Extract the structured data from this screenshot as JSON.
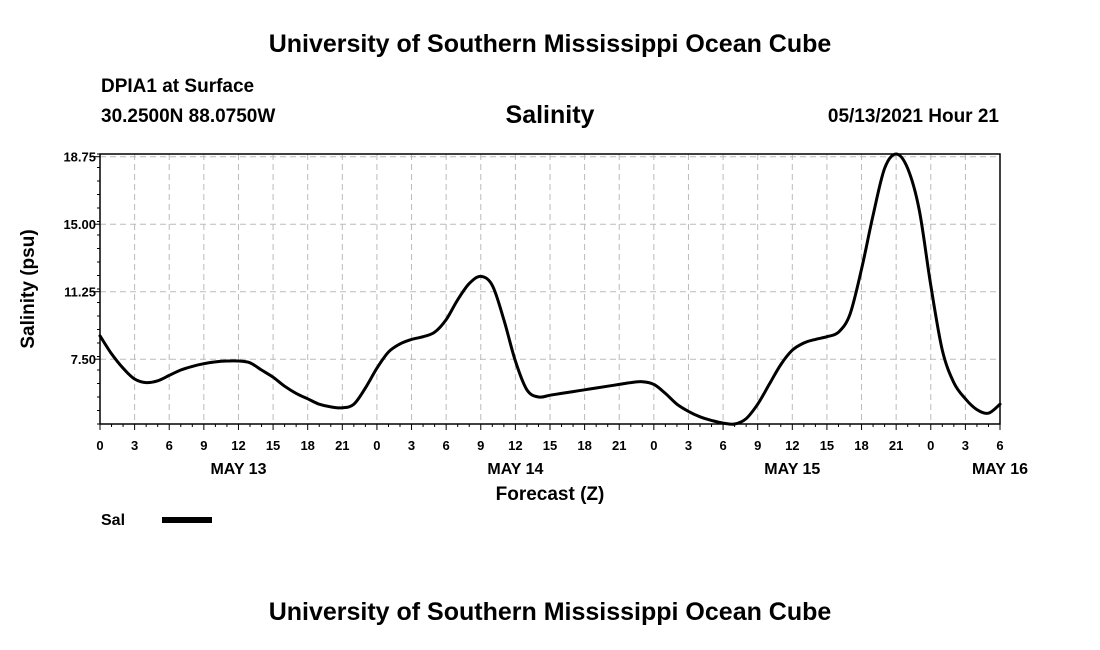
{
  "header": {
    "title": "University of Southern Mississippi Ocean Cube",
    "station": "DPIA1 at Surface",
    "coords": "30.2500N  88.0750W",
    "chart_title": "Salinity",
    "run_time": "05/13/2021 Hour 21",
    "footer_title": "University of Southern Mississippi Ocean Cube"
  },
  "colors": {
    "line": "#000000",
    "grid": "#bbbbbb",
    "background": "#ffffff"
  },
  "chart_data": {
    "type": "line",
    "title": "Salinity",
    "xlabel": "Forecast (Z)",
    "ylabel": "Salinity (psu)",
    "ylim": [
      3.9,
      18.9
    ],
    "yticks": [
      7.5,
      11.25,
      15.0,
      18.75
    ],
    "ytick_labels": [
      "7.50",
      "11.25",
      "15.00",
      "18.75"
    ],
    "xlim": [
      0,
      78
    ],
    "xticks": [
      0,
      3,
      6,
      9,
      12,
      15,
      18,
      21,
      24,
      27,
      30,
      33,
      36,
      39,
      42,
      45,
      48,
      51,
      54,
      57,
      60,
      63,
      66,
      69,
      72,
      75,
      78
    ],
    "xtick_labels": [
      "0",
      "3",
      "6",
      "9",
      "12",
      "15",
      "18",
      "21",
      "0",
      "3",
      "6",
      "9",
      "12",
      "15",
      "18",
      "21",
      "0",
      "3",
      "6",
      "9",
      "12",
      "15",
      "18",
      "21",
      "0",
      "3",
      "6"
    ],
    "x_unit": "hours since 00Z May 13",
    "day_labels": [
      {
        "x": 12,
        "label": "MAY 13"
      },
      {
        "x": 36,
        "label": "MAY 14"
      },
      {
        "x": 60,
        "label": "MAY 15"
      },
      {
        "x": 78,
        "label": "MAY 16"
      }
    ],
    "grid": true,
    "legend_position": "bottom-left",
    "series": [
      {
        "name": "Sal",
        "x": [
          0,
          1,
          2,
          3,
          4,
          5,
          6,
          7,
          8,
          9,
          10,
          11,
          12,
          13,
          14,
          15,
          16,
          17,
          18,
          19,
          20,
          21,
          22,
          23,
          24,
          25,
          26,
          27,
          28,
          29,
          30,
          31,
          32,
          33,
          34,
          35,
          36,
          37,
          38,
          39,
          40,
          41,
          42,
          43,
          44,
          45,
          46,
          47,
          48,
          49,
          50,
          51,
          52,
          53,
          54,
          55,
          56,
          57,
          58,
          59,
          60,
          61,
          62,
          63,
          64,
          65,
          66,
          67,
          68,
          69,
          70,
          71,
          72,
          73,
          74,
          75,
          76,
          77,
          78
        ],
        "y": [
          8.8,
          7.8,
          7.0,
          6.4,
          6.2,
          6.3,
          6.6,
          6.9,
          7.1,
          7.25,
          7.35,
          7.4,
          7.4,
          7.3,
          6.9,
          6.5,
          6.0,
          5.6,
          5.3,
          5.0,
          4.85,
          4.8,
          5.0,
          5.9,
          7.0,
          7.9,
          8.35,
          8.6,
          8.75,
          9.0,
          9.7,
          10.8,
          11.7,
          12.1,
          11.6,
          9.7,
          7.4,
          5.8,
          5.4,
          5.5,
          5.6,
          5.7,
          5.8,
          5.9,
          6.0,
          6.1,
          6.2,
          6.25,
          6.1,
          5.6,
          5.0,
          4.6,
          4.3,
          4.1,
          3.95,
          3.9,
          4.2,
          5.0,
          6.1,
          7.2,
          8.0,
          8.4,
          8.6,
          8.75,
          9.0,
          10.0,
          12.5,
          15.5,
          18.1,
          18.9,
          18.1,
          15.8,
          11.6,
          8.0,
          6.2,
          5.3,
          4.7,
          4.5,
          5.0
        ]
      }
    ]
  }
}
